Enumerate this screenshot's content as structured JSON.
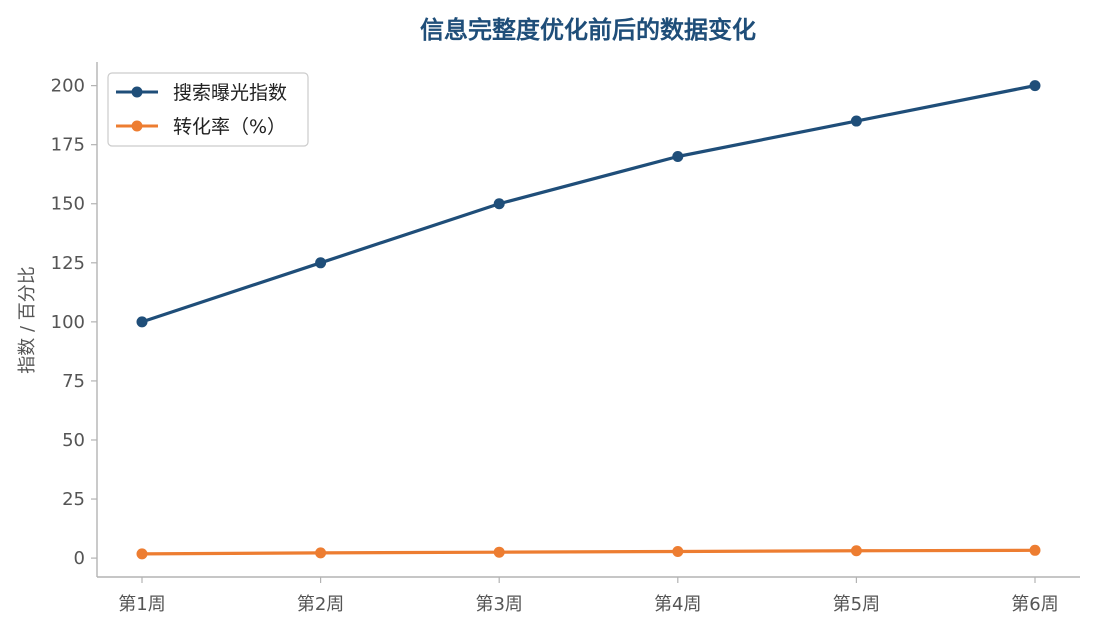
{
  "chart_data": {
    "type": "line",
    "title": "信息完整度优化前后的数据变化",
    "xlabel": "",
    "ylabel": "指数 / 百分比",
    "categories": [
      "第1周",
      "第2周",
      "第3周",
      "第4周",
      "第5周",
      "第6周"
    ],
    "series": [
      {
        "name": "搜索曝光指数",
        "values": [
          100,
          125,
          150,
          170,
          185,
          200
        ],
        "color": "#1f4e79"
      },
      {
        "name": "转化率（%）",
        "values": [
          1.8,
          2.2,
          2.5,
          2.8,
          3.1,
          3.3
        ],
        "color": "#ed7d31"
      }
    ],
    "ylim": [
      -8,
      210
    ],
    "yticks": [
      "0",
      "25",
      "50",
      "75",
      "100",
      "125",
      "150",
      "175",
      "200"
    ],
    "grid": false,
    "legend_position": "top-left",
    "title_color": "#1f4e79"
  }
}
